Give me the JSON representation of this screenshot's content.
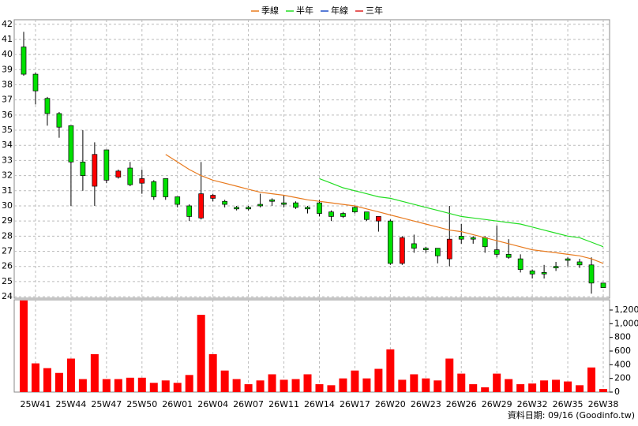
{
  "chart_data": {
    "type": "candlestick",
    "categories": [
      null,
      "25W41",
      null,
      null,
      "25W44",
      null,
      null,
      "25W47",
      null,
      null,
      "25W50",
      null,
      null,
      "26W01",
      null,
      null,
      "26W04",
      null,
      null,
      "26W07",
      null,
      null,
      "26W11",
      null,
      null,
      "26W14",
      null,
      null,
      "26W17",
      null,
      null,
      "26W20",
      null,
      null,
      "26W23",
      null,
      null,
      "26W26",
      null,
      null,
      "26W29",
      null,
      null,
      "26W32",
      null,
      null,
      "26W35",
      null,
      null,
      "26W38"
    ],
    "open": [
      40.5,
      38.7,
      37.1,
      36.1,
      35.3,
      32.9,
      31.3,
      33.7,
      31.9,
      32.5,
      31.5,
      31.6,
      31.8,
      30.6,
      30.0,
      29.2,
      30.5,
      30.3,
      29.9,
      29.9,
      30.1,
      30.4,
      30.2,
      30.2,
      29.9,
      30.2,
      29.6,
      29.5,
      29.9,
      29.6,
      29.0,
      29.0,
      26.2,
      27.5,
      27.2,
      27.2,
      26.5,
      28.0,
      27.9,
      27.9,
      27.1,
      26.8,
      26.5,
      25.7,
      25.6,
      26.0,
      26.5,
      26.3,
      26.1,
      24.9
    ],
    "high": [
      41.5,
      38.8,
      37.2,
      36.2,
      35.3,
      35.0,
      34.2,
      33.7,
      32.4,
      32.9,
      32.4,
      31.7,
      31.8,
      30.6,
      30.1,
      32.9,
      30.8,
      30.4,
      30.0,
      30.0,
      30.8,
      30.5,
      30.7,
      30.3,
      30.0,
      30.4,
      29.7,
      29.6,
      30.0,
      29.6,
      29.3,
      29.1,
      28.0,
      28.1,
      27.3,
      27.2,
      30.0,
      28.8,
      28.0,
      28.0,
      28.7,
      27.8,
      26.8,
      25.8,
      26.1,
      26.3,
      26.6,
      26.5,
      26.6,
      24.9
    ],
    "low": [
      38.6,
      36.7,
      35.3,
      34.5,
      30.0,
      31.0,
      30.0,
      31.5,
      31.8,
      31.3,
      30.8,
      30.4,
      30.4,
      29.9,
      29.0,
      29.1,
      30.3,
      29.9,
      29.7,
      29.7,
      29.9,
      30.0,
      29.9,
      29.8,
      29.5,
      29.3,
      29.0,
      29.2,
      29.5,
      29.0,
      28.3,
      26.1,
      26.1,
      26.9,
      26.9,
      26.2,
      26.0,
      27.5,
      27.5,
      26.9,
      26.6,
      26.5,
      25.6,
      25.2,
      25.2,
      25.7,
      26.0,
      25.9,
      24.2,
      24.6
    ],
    "close": [
      38.7,
      37.6,
      36.1,
      35.2,
      32.9,
      32.0,
      33.4,
      31.7,
      32.3,
      31.4,
      31.8,
      30.6,
      30.6,
      30.1,
      29.3,
      30.8,
      30.7,
      30.1,
      29.8,
      29.8,
      30.0,
      30.3,
      30.1,
      29.9,
      29.8,
      29.5,
      29.3,
      29.3,
      29.6,
      29.1,
      29.3,
      26.2,
      27.9,
      27.2,
      27.1,
      26.7,
      27.8,
      27.8,
      27.8,
      27.3,
      26.8,
      26.6,
      25.8,
      25.5,
      25.5,
      25.9,
      26.4,
      26.1,
      24.9,
      24.6
    ],
    "up_color": "#ff0000",
    "down_color": "#00e000",
    "ylim": [
      23.9,
      42.3
    ],
    "yticks": [
      24,
      25,
      26,
      27,
      28,
      29,
      30,
      31,
      32,
      33,
      34,
      35,
      36,
      37,
      38,
      39,
      40,
      41,
      42
    ],
    "grid": true,
    "series": [
      {
        "name": "季線",
        "color": "#e87a1e",
        "values": [
          null,
          null,
          null,
          null,
          null,
          null,
          null,
          null,
          null,
          null,
          null,
          null,
          33.4,
          32.9,
          32.4,
          32.0,
          31.7,
          31.5,
          31.3,
          31.1,
          30.9,
          30.8,
          30.7,
          30.55,
          30.4,
          30.3,
          30.2,
          30.1,
          30.0,
          29.8,
          29.6,
          29.4,
          29.2,
          29.0,
          28.8,
          28.6,
          28.4,
          28.3,
          28.1,
          27.9,
          27.7,
          27.5,
          27.3,
          27.1,
          27.0,
          26.9,
          26.8,
          26.7,
          26.5,
          26.2
        ]
      },
      {
        "name": "半年",
        "color": "#22dd22",
        "values": [
          null,
          null,
          null,
          null,
          null,
          null,
          null,
          null,
          null,
          null,
          null,
          null,
          null,
          null,
          null,
          null,
          null,
          null,
          null,
          null,
          null,
          null,
          null,
          null,
          null,
          31.8,
          31.5,
          31.2,
          31.0,
          30.8,
          30.6,
          30.5,
          30.3,
          30.1,
          29.9,
          29.7,
          29.5,
          29.3,
          29.2,
          29.1,
          29.0,
          28.9,
          28.8,
          28.6,
          28.4,
          28.2,
          28.0,
          27.9,
          27.6,
          27.3
        ]
      },
      {
        "name": "年線",
        "color": "#1f4fc8",
        "values": [
          null,
          null,
          null,
          null,
          null,
          null,
          null,
          null,
          null,
          null,
          null,
          null,
          null,
          null,
          null,
          null,
          null,
          null,
          null,
          null,
          null,
          null,
          null,
          null,
          null,
          null,
          null,
          null,
          null,
          null,
          null,
          null,
          null,
          null,
          null,
          null,
          null,
          null,
          null,
          null,
          null,
          null,
          null,
          null,
          null,
          null,
          null,
          null,
          null,
          null
        ]
      },
      {
        "name": "三年",
        "color": "#dd2222",
        "values": [
          null,
          null,
          null,
          null,
          null,
          null,
          null,
          null,
          null,
          null,
          null,
          null,
          null,
          null,
          null,
          null,
          null,
          null,
          null,
          null,
          null,
          null,
          null,
          null,
          null,
          null,
          null,
          null,
          null,
          null,
          null,
          null,
          null,
          null,
          null,
          null,
          null,
          null,
          null,
          null,
          null,
          null,
          null,
          null,
          null,
          null,
          null,
          null,
          null,
          null
        ]
      }
    ],
    "volume": {
      "color": "#ff0000",
      "values": [
        1340,
        420,
        350,
        280,
        490,
        190,
        555,
        190,
        190,
        210,
        210,
        135,
        170,
        135,
        250,
        1130,
        555,
        315,
        190,
        115,
        170,
        260,
        180,
        190,
        260,
        115,
        100,
        200,
        315,
        200,
        340,
        625,
        180,
        260,
        200,
        170,
        490,
        270,
        115,
        70,
        270,
        190,
        115,
        125,
        170,
        180,
        155,
        100,
        360,
        45
      ],
      "ylim": [
        0,
        1350
      ],
      "yticks": [
        0,
        200,
        400,
        600,
        800,
        {
          "value": 1000,
          "label": "1,000"
        },
        {
          "value": 1200,
          "label": "1,200"
        }
      ]
    },
    "source": "資料日期: 09/16  (Goodinfo.tw)"
  }
}
